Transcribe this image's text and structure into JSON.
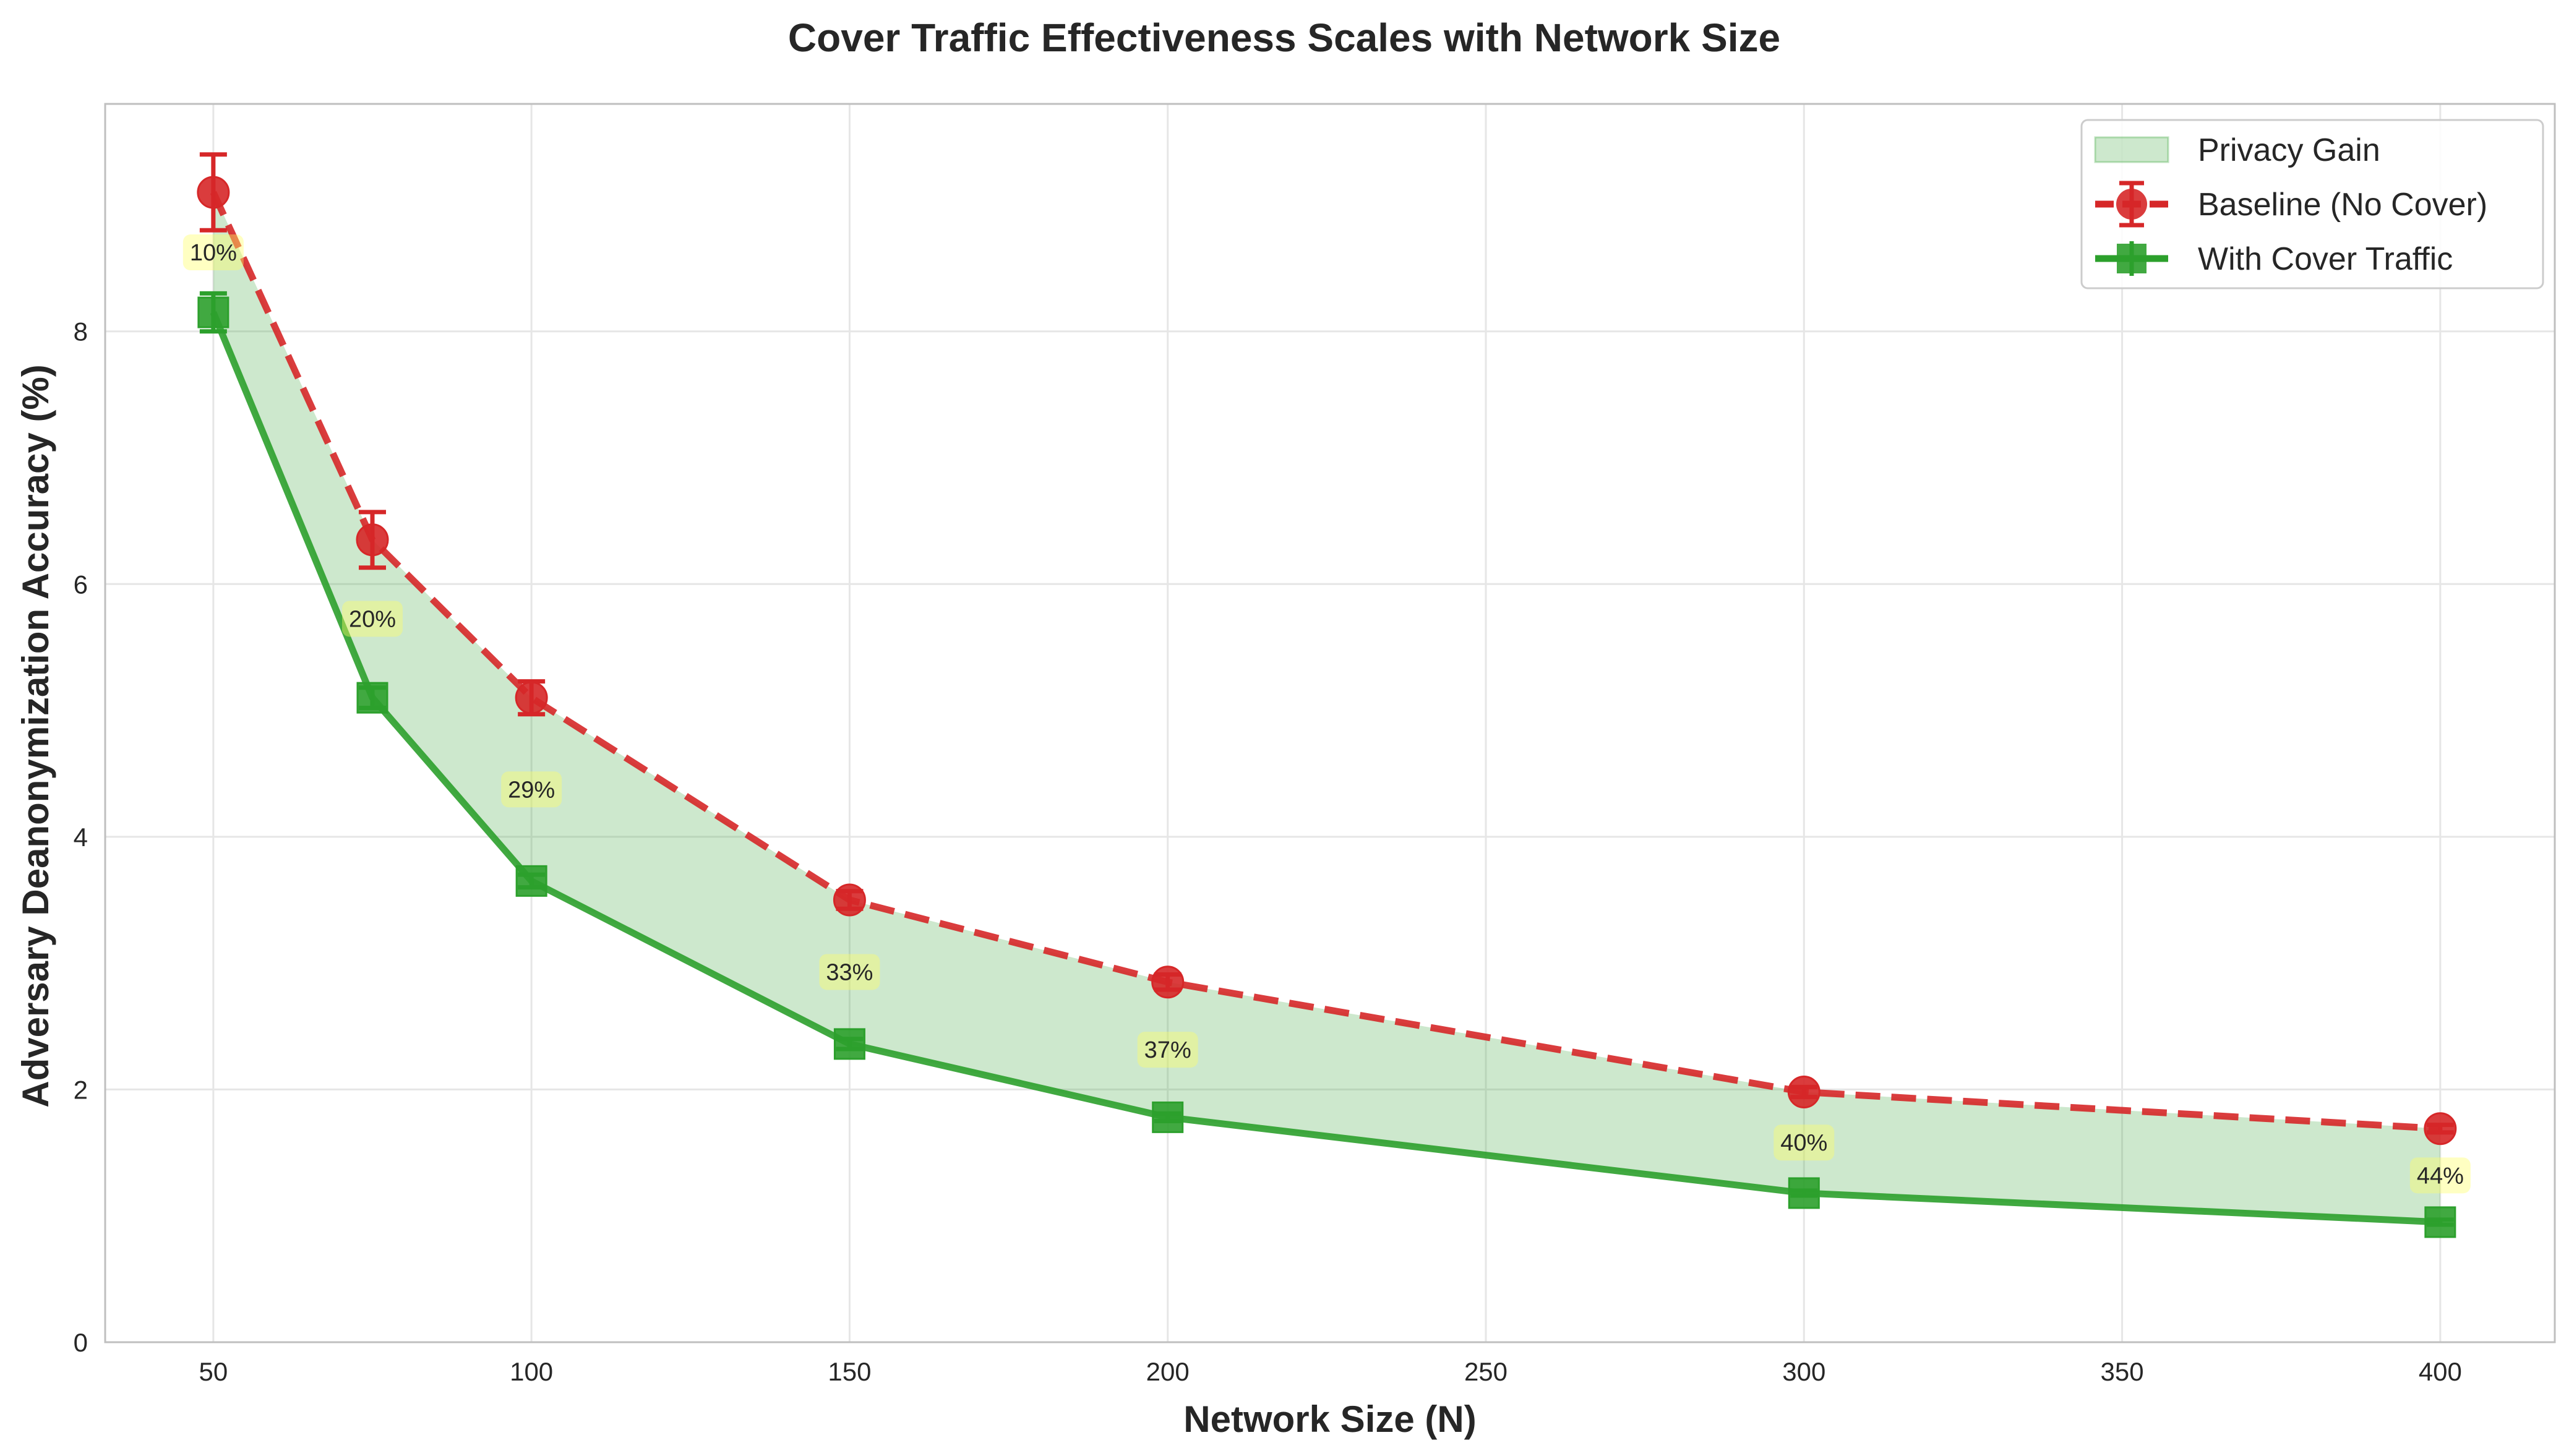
{
  "chart_data": {
    "type": "line",
    "title": "Cover Traffic Effectiveness Scales with Network Size",
    "xlabel": "Network Size (N)",
    "ylabel": "Adversary Deanonymization Accuracy (%)",
    "x": [
      50,
      75,
      100,
      150,
      200,
      300,
      400
    ],
    "xlim": [
      33,
      418
    ],
    "ylim": [
      0,
      9.8
    ],
    "x_ticks": [
      50,
      100,
      150,
      200,
      250,
      300,
      350,
      400
    ],
    "y_ticks": [
      0,
      2,
      4,
      6,
      8
    ],
    "grid": true,
    "legend_position": "top-right",
    "series": [
      {
        "name": "Baseline (No Cover)",
        "values": [
          9.1,
          6.35,
          5.1,
          3.5,
          2.85,
          1.98,
          1.69
        ],
        "errors": [
          0.3,
          0.22,
          0.13,
          0.07,
          0.06,
          0.04,
          0.03
        ],
        "color": "#d62728",
        "style": "dashed",
        "marker": "circle"
      },
      {
        "name": "With Cover Traffic",
        "values": [
          8.15,
          5.1,
          3.65,
          2.36,
          1.78,
          1.18,
          0.95
        ],
        "errors": [
          0.15,
          0.08,
          0.05,
          0.04,
          0.03,
          0.02,
          0.02
        ],
        "color": "#2ca02c",
        "style": "solid",
        "marker": "square"
      }
    ],
    "fill": {
      "name": "Privacy Gain",
      "color": "#2ca02c",
      "opacity": 0.24
    },
    "annotations": [
      "10%",
      "20%",
      "29%",
      "33%",
      "37%",
      "40%",
      "44%"
    ]
  }
}
